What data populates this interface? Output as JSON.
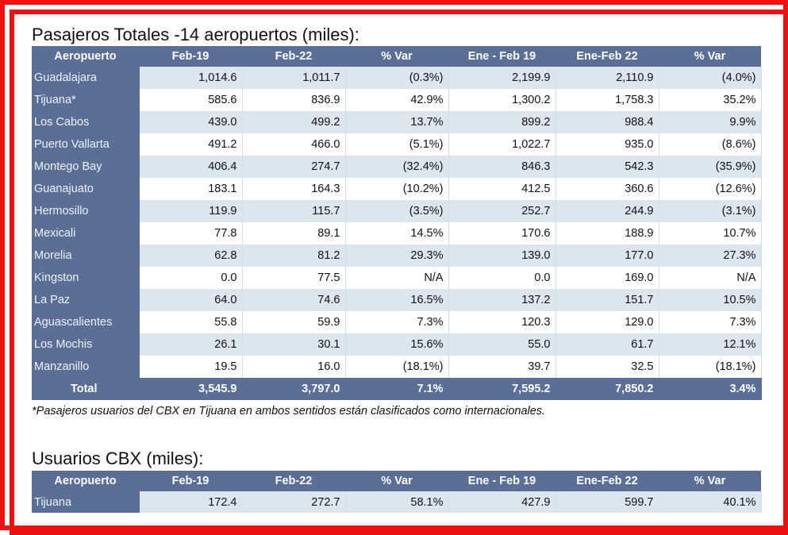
{
  "table1": {
    "title": "Pasajeros Totales -14 aeropuertos (miles):",
    "headers": [
      "Aeropuerto",
      "Feb-19",
      "Feb-22",
      "% Var",
      "Ene - Feb 19",
      "Ene-Feb 22",
      "% Var"
    ],
    "rows": [
      [
        "Guadalajara",
        "1,014.6",
        "1,011.7",
        "(0.3%)",
        "2,199.9",
        "2,110.9",
        "(4.0%)"
      ],
      [
        "Tijuana*",
        "585.6",
        "836.9",
        "42.9%",
        "1,300.2",
        "1,758.3",
        "35.2%"
      ],
      [
        "Los Cabos",
        "439.0",
        "499.2",
        "13.7%",
        "899.2",
        "988.4",
        "9.9%"
      ],
      [
        "Puerto Vallarta",
        "491.2",
        "466.0",
        "(5.1%)",
        "1,022.7",
        "935.0",
        "(8.6%)"
      ],
      [
        "Montego Bay",
        "406.4",
        "274.7",
        "(32.4%)",
        "846.3",
        "542.3",
        "(35.9%)"
      ],
      [
        "Guanajuato",
        "183.1",
        "164.3",
        "(10.2%)",
        "412.5",
        "360.6",
        "(12.6%)"
      ],
      [
        "Hermosillo",
        "119.9",
        "115.7",
        "(3.5%)",
        "252.7",
        "244.9",
        "(3.1%)"
      ],
      [
        "Mexicali",
        "77.8",
        "89.1",
        "14.5%",
        "170.6",
        "188.9",
        "10.7%"
      ],
      [
        "Morelia",
        "62.8",
        "81.2",
        "29.3%",
        "139.0",
        "177.0",
        "27.3%"
      ],
      [
        "Kingston",
        "0.0",
        "77.5",
        "N/A",
        "0.0",
        "169.0",
        "N/A"
      ],
      [
        "La Paz",
        "64.0",
        "74.6",
        "16.5%",
        "137.2",
        "151.7",
        "10.5%"
      ],
      [
        "Aguascalientes",
        "55.8",
        "59.9",
        "7.3%",
        "120.3",
        "129.0",
        "7.3%"
      ],
      [
        "Los Mochis",
        "26.1",
        "30.1",
        "15.6%",
        "55.0",
        "61.7",
        "12.1%"
      ],
      [
        "Manzanillo",
        "19.5",
        "16.0",
        "(18.1%)",
        "39.7",
        "32.5",
        "(18.1%)"
      ]
    ],
    "total": [
      "Total",
      "3,545.9",
      "3,797.0",
      "7.1%",
      "7,595.2",
      "7,850.2",
      "3.4%"
    ],
    "footnote": "*Pasajeros usuarios del CBX en Tijuana en ambos sentidos están clasificados como internacionales."
  },
  "table2": {
    "title": "Usuarios CBX (miles):",
    "headers": [
      "Aeropuerto",
      "Feb-19",
      "Feb-22",
      "% Var",
      "Ene - Feb 19",
      "Ene-Feb 22",
      "% Var"
    ],
    "rows": [
      [
        "Tijuana",
        "172.4",
        "272.7",
        "58.1%",
        "427.9",
        "599.7",
        "40.1%"
      ]
    ]
  },
  "colors": {
    "header_bg": "#5b6e96",
    "stripe_bg": "#dce6f1",
    "frame": "#ee1111"
  }
}
